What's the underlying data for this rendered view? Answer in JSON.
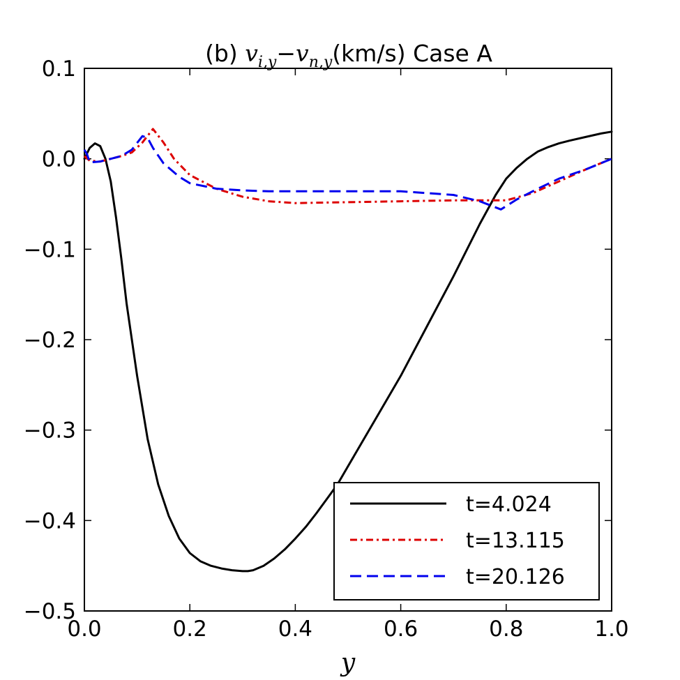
{
  "chart_data": {
    "type": "line",
    "title": {
      "prefix": "(b) ",
      "var1": "v",
      "var1_sub": "i,y",
      "minus": "−",
      "var2": "v",
      "var2_sub": "n,y",
      "suffix": "(km/s)  Case A"
    },
    "xlabel": "y",
    "ylabel": "",
    "xlim": [
      0.0,
      1.0
    ],
    "ylim": [
      -0.5,
      0.1
    ],
    "xticks": [
      0.0,
      0.2,
      0.4,
      0.6,
      0.8,
      1.0
    ],
    "xtick_labels": [
      "0.0",
      "0.2",
      "0.4",
      "0.6",
      "0.8",
      "1.0"
    ],
    "yticks": [
      0.1,
      0.0,
      -0.1,
      -0.2,
      -0.3,
      -0.4,
      -0.5
    ],
    "ytick_labels": [
      "0.1",
      "0.0",
      "−0.1",
      "−0.2",
      "−0.3",
      "−0.4",
      "−0.5"
    ],
    "legend_position": "lower-right",
    "series": [
      {
        "name": "t=4.024",
        "color": "#000000",
        "style": "solid",
        "x": [
          0.0,
          0.01,
          0.02,
          0.03,
          0.04,
          0.05,
          0.06,
          0.07,
          0.08,
          0.1,
          0.12,
          0.14,
          0.16,
          0.18,
          0.2,
          0.22,
          0.24,
          0.26,
          0.28,
          0.3,
          0.31,
          0.32,
          0.34,
          0.36,
          0.38,
          0.4,
          0.42,
          0.44,
          0.46,
          0.48,
          0.5,
          0.55,
          0.6,
          0.65,
          0.7,
          0.75,
          0.78,
          0.8,
          0.82,
          0.84,
          0.86,
          0.88,
          0.9,
          0.92,
          0.95,
          0.98,
          1.0
        ],
        "y": [
          0.0,
          0.012,
          0.017,
          0.014,
          0.0,
          -0.025,
          -0.065,
          -0.11,
          -0.16,
          -0.24,
          -0.31,
          -0.36,
          -0.395,
          -0.42,
          -0.436,
          -0.445,
          -0.45,
          -0.453,
          -0.455,
          -0.456,
          -0.456,
          -0.455,
          -0.45,
          -0.442,
          -0.432,
          -0.42,
          -0.407,
          -0.392,
          -0.376,
          -0.36,
          -0.34,
          -0.29,
          -0.24,
          -0.185,
          -0.13,
          -0.072,
          -0.04,
          -0.022,
          -0.01,
          0.0,
          0.008,
          0.013,
          0.017,
          0.02,
          0.024,
          0.028,
          0.03
        ]
      },
      {
        "name": "t=13.115",
        "color": "#dd0000",
        "style": "dashdot",
        "x": [
          0.0,
          0.01,
          0.03,
          0.05,
          0.07,
          0.09,
          0.11,
          0.13,
          0.15,
          0.17,
          0.2,
          0.25,
          0.3,
          0.35,
          0.4,
          0.5,
          0.6,
          0.7,
          0.75,
          0.8,
          0.85,
          0.9,
          0.95,
          1.0
        ],
        "y": [
          0.003,
          -0.002,
          -0.003,
          0.0,
          0.003,
          0.007,
          0.018,
          0.033,
          0.018,
          0.0,
          -0.018,
          -0.033,
          -0.042,
          -0.047,
          -0.049,
          -0.048,
          -0.047,
          -0.046,
          -0.046,
          -0.046,
          -0.038,
          -0.025,
          -0.012,
          0.0
        ]
      },
      {
        "name": "t=20.126",
        "color": "#0000ee",
        "style": "dashed",
        "x": [
          0.0,
          0.005,
          0.01,
          0.03,
          0.05,
          0.07,
          0.09,
          0.11,
          0.12,
          0.13,
          0.15,
          0.18,
          0.2,
          0.25,
          0.3,
          0.35,
          0.4,
          0.5,
          0.6,
          0.7,
          0.75,
          0.79,
          0.82,
          0.86,
          0.9,
          0.95,
          1.0
        ],
        "y": [
          0.01,
          0.005,
          -0.004,
          -0.003,
          0.0,
          0.003,
          0.01,
          0.025,
          0.023,
          0.012,
          -0.005,
          -0.02,
          -0.027,
          -0.033,
          -0.035,
          -0.036,
          -0.036,
          -0.036,
          -0.036,
          -0.04,
          -0.047,
          -0.056,
          -0.045,
          -0.033,
          -0.022,
          -0.012,
          0.0
        ]
      }
    ]
  }
}
